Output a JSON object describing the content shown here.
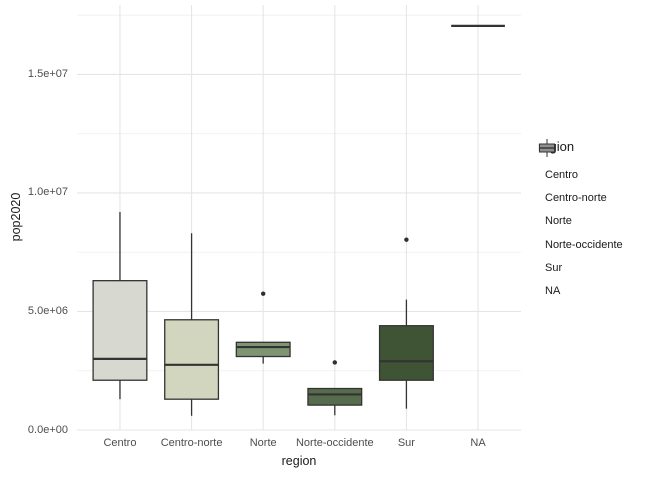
{
  "axes": {
    "x": {
      "title": "region",
      "categories": [
        "Centro",
        "Centro-norte",
        "Norte",
        "Norte-occidente",
        "Sur",
        "NA"
      ]
    },
    "y": {
      "title": "pop2020",
      "tick_labels": [
        "0.0e+00",
        "5.0e+06",
        "1.0e+07",
        "1.5e+07"
      ],
      "tick_values": [
        0,
        5000000,
        10000000,
        15000000
      ],
      "minor_tick_values": [
        2500000,
        7500000,
        12500000,
        17500000
      ],
      "range": [
        0,
        17930000
      ]
    }
  },
  "legend": {
    "title": "region",
    "position": "right",
    "entries": [
      {
        "label": "Centro",
        "fill": "#d7d9d0"
      },
      {
        "label": "Centro-norte",
        "fill": "#d3d6bf"
      },
      {
        "label": "Norte",
        "fill": "#7e9472"
      },
      {
        "label": "Norte-occidente",
        "fill": "#566c4c"
      },
      {
        "label": "Sur",
        "fill": "#3e5435"
      },
      {
        "label": "NA",
        "fill": "#8f8f8f"
      }
    ]
  },
  "colors": {
    "box_stroke": "#333333",
    "median_stroke": "#333333",
    "outlier_fill": "#2f2f2f",
    "grid_major": "#e5e5e5",
    "grid_minor": "#efefef",
    "tick_label": "#4d4d4d",
    "axis_title": "#1a1a1a",
    "background": "#ffffff"
  },
  "chart_data": {
    "type": "boxplot",
    "title": "",
    "xlabel": "region",
    "ylabel": "pop2020",
    "ylim": [
      0,
      17930000
    ],
    "grid": true,
    "legend_position": "right",
    "categories": [
      "Centro",
      "Centro-norte",
      "Norte",
      "Norte-occidente",
      "Sur",
      "NA"
    ],
    "series": [
      {
        "category": "Centro",
        "fill": "#d7d9d0",
        "min": 1300000,
        "q1": 2100000,
        "median": 3000000,
        "q3": 6300000,
        "max": 9200000,
        "outliers": []
      },
      {
        "category": "Centro-norte",
        "fill": "#d3d6bf",
        "min": 600000,
        "q1": 1300000,
        "median": 2750000,
        "q3": 4650000,
        "max": 8300000,
        "outliers": []
      },
      {
        "category": "Norte",
        "fill": "#7e9472",
        "min": 2800000,
        "q1": 3100000,
        "median": 3500000,
        "q3": 3700000,
        "max": 3700000,
        "outliers": [
          5750000
        ]
      },
      {
        "category": "Norte-occidente",
        "fill": "#566c4c",
        "min": 620000,
        "q1": 1050000,
        "median": 1500000,
        "q3": 1750000,
        "max": 1750000,
        "outliers": [
          2850000
        ]
      },
      {
        "category": "Sur",
        "fill": "#3e5435",
        "min": 900000,
        "q1": 2100000,
        "median": 2900000,
        "q3": 4400000,
        "max": 5500000,
        "outliers": [
          8030000
        ]
      },
      {
        "category": "NA",
        "fill": "#8f8f8f",
        "min": 17050000,
        "q1": 17050000,
        "median": 17050000,
        "q3": 17050000,
        "max": 17050000,
        "outliers": []
      }
    ]
  }
}
